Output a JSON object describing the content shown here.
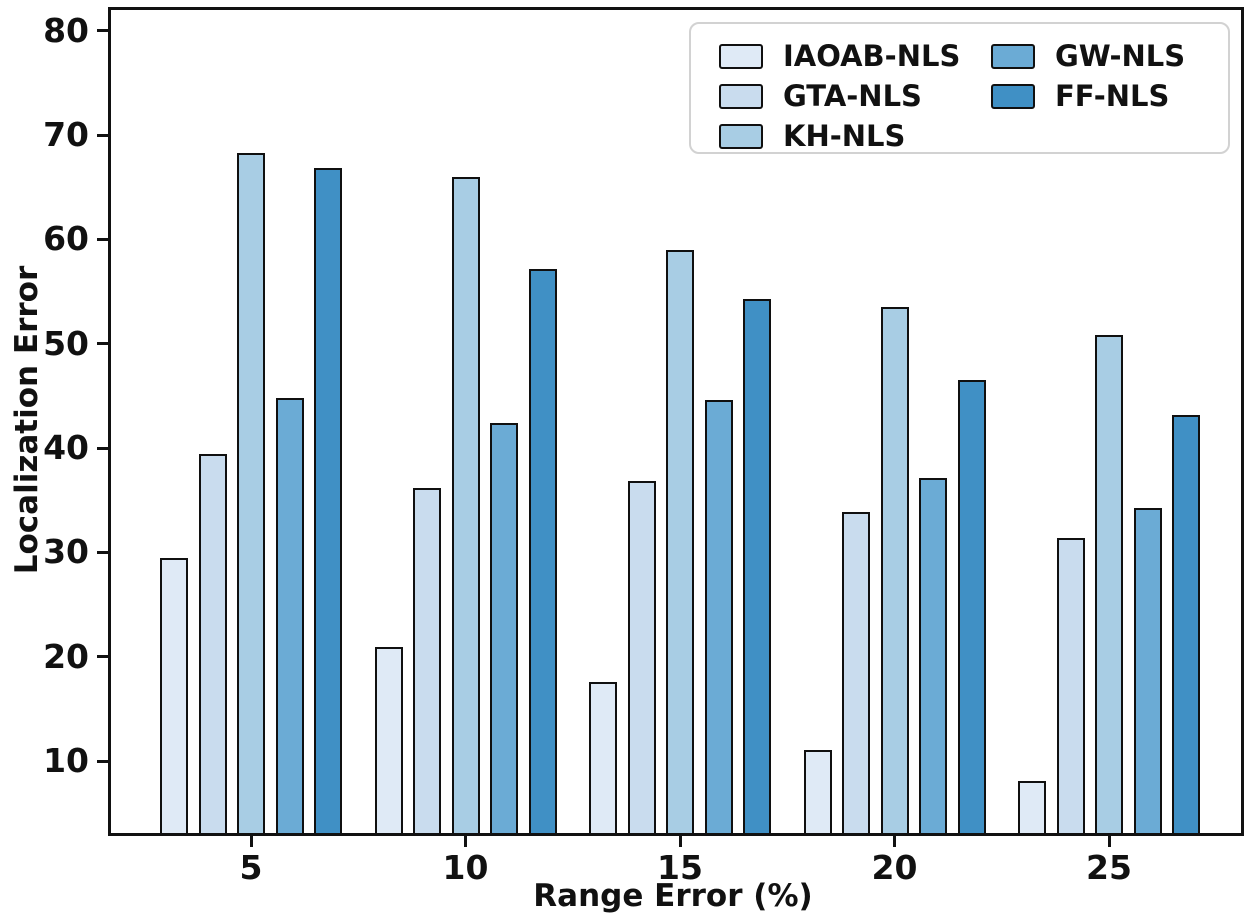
{
  "chart_data": {
    "type": "bar",
    "title": "",
    "xlabel": "Range Error (%)",
    "ylabel": "Localization Error",
    "categories": [
      "5",
      "10",
      "15",
      "20",
      "25"
    ],
    "series": [
      {
        "name": "IAOAB-NLS",
        "color": "#dfeaf6",
        "values": [
          29.5,
          20.9,
          17.6,
          11.1,
          8.1
        ]
      },
      {
        "name": "GTA-NLS",
        "color": "#c9dcee",
        "values": [
          39.4,
          36.2,
          36.8,
          33.9,
          31.4
        ]
      },
      {
        "name": "KH-NLS",
        "color": "#a8cde4",
        "values": [
          68.3,
          66.0,
          59.0,
          53.5,
          50.8
        ]
      },
      {
        "name": "GW-NLS",
        "color": "#6babd5",
        "values": [
          44.8,
          42.4,
          44.6,
          37.1,
          34.3
        ]
      },
      {
        "name": "FF-NLS",
        "color": "#4090c5",
        "values": [
          66.9,
          57.2,
          54.3,
          46.5,
          43.2
        ]
      }
    ],
    "yticks": [
      10,
      20,
      30,
      40,
      50,
      60,
      70,
      80
    ],
    "ylim": [
      3.1,
      82.0
    ],
    "grid": false,
    "bar_edge_color": "#101010",
    "legend": {
      "position": "upper-right",
      "ncol": 2,
      "column_split": 3,
      "entries": [
        "IAOAB-NLS",
        "GTA-NLS",
        "KH-NLS",
        "GW-NLS",
        "FF-NLS"
      ]
    }
  }
}
